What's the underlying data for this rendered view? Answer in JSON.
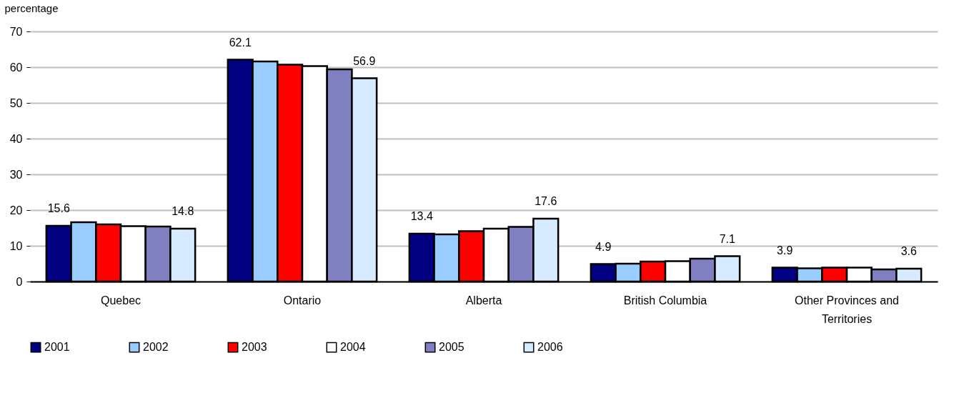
{
  "chart_data": {
    "type": "bar",
    "ylabel": "percentage",
    "categories": [
      "Quebec",
      "Ontario",
      "Alberta",
      "British Columbia",
      "Other Provinces and Territories"
    ],
    "series": [
      {
        "name": "2001",
        "color": "#000080",
        "values": [
          15.6,
          62.1,
          13.4,
          4.9,
          3.9
        ],
        "value_labels": [
          "15.6",
          "62.1",
          "13.4",
          "4.9",
          "3.9"
        ]
      },
      {
        "name": "2002",
        "color": "#99ccff",
        "values": [
          16.6,
          61.6,
          13.2,
          5.0,
          3.7
        ]
      },
      {
        "name": "2003",
        "color": "#ff0000",
        "values": [
          16.0,
          60.7,
          14.1,
          5.6,
          3.9
        ]
      },
      {
        "name": "2004",
        "color": "#ffffff",
        "values": [
          15.5,
          60.3,
          14.8,
          5.7,
          3.9
        ]
      },
      {
        "name": "2005",
        "color": "#8080c0",
        "values": [
          15.4,
          59.4,
          15.3,
          6.4,
          3.4
        ]
      },
      {
        "name": "2006",
        "color": "#d6ebff",
        "values": [
          14.8,
          56.9,
          17.6,
          7.1,
          3.6
        ],
        "value_labels": [
          "14.8",
          "56.9",
          "17.6",
          "7.1",
          "3.6"
        ]
      }
    ],
    "ylim": [
      0,
      70
    ],
    "yticks": [
      0,
      10,
      20,
      30,
      40,
      50,
      60,
      70
    ],
    "grid": "y",
    "legend": "bottom"
  }
}
